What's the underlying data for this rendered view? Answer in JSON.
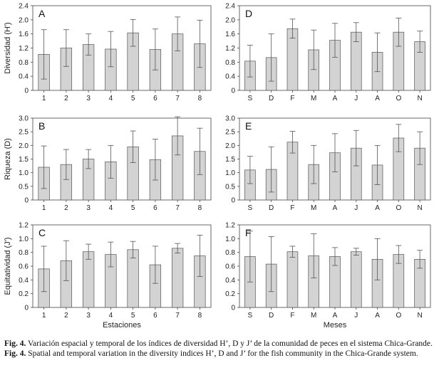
{
  "chart_data": [
    {
      "panel": "A",
      "type": "bar",
      "categories": [
        "1",
        "2",
        "3",
        "4",
        "5",
        "6",
        "7",
        "8"
      ],
      "values": [
        1.02,
        1.2,
        1.3,
        1.17,
        1.63,
        1.16,
        1.6,
        1.32
      ],
      "errors": [
        0.7,
        0.52,
        0.3,
        0.5,
        0.38,
        0.58,
        0.48,
        0.67
      ],
      "ylabel": "Diversidad (H')",
      "xlabel": "",
      "ylim": [
        0,
        2.4
      ],
      "yticks": [
        "0",
        "0.4",
        "0.8",
        "1.2",
        "1.6",
        "2.0",
        "2.4"
      ]
    },
    {
      "panel": "D",
      "type": "bar",
      "categories": [
        "S",
        "D",
        "F",
        "M",
        "A",
        "J",
        "A",
        "O",
        "N"
      ],
      "values": [
        0.83,
        0.93,
        1.75,
        1.15,
        1.42,
        1.65,
        1.08,
        1.65,
        1.38
      ],
      "errors": [
        0.45,
        0.67,
        0.27,
        0.56,
        0.48,
        0.27,
        0.55,
        0.4,
        0.3
      ],
      "ylabel": "",
      "xlabel": "",
      "ylim": [
        0,
        2.4
      ],
      "yticks": [
        "0",
        "0.4",
        "0.8",
        "1.2",
        "1.6",
        "2.0",
        "2.4"
      ]
    },
    {
      "panel": "B",
      "type": "bar",
      "categories": [
        "1",
        "2",
        "3",
        "4",
        "5",
        "6",
        "7",
        "8"
      ],
      "values": [
        1.2,
        1.3,
        1.5,
        1.4,
        1.95,
        1.48,
        2.35,
        1.78
      ],
      "errors": [
        0.78,
        0.55,
        0.35,
        0.6,
        0.58,
        0.75,
        0.7,
        0.85
      ],
      "ylabel": "Riqueza (D)",
      "xlabel": "",
      "ylim": [
        0,
        3.0
      ],
      "yticks": [
        "0",
        "0.5",
        "1.0",
        "1.5",
        "2.0",
        "2.5",
        "3.0"
      ]
    },
    {
      "panel": "E",
      "type": "bar",
      "categories": [
        "S",
        "D",
        "F",
        "M",
        "A",
        "J",
        "A",
        "O",
        "N"
      ],
      "values": [
        1.1,
        1.12,
        2.12,
        1.3,
        1.73,
        1.9,
        1.28,
        2.27,
        1.9
      ],
      "errors": [
        0.5,
        0.83,
        0.4,
        0.7,
        0.7,
        0.65,
        0.72,
        0.5,
        0.6
      ],
      "ylabel": "",
      "xlabel": "",
      "ylim": [
        0,
        3.0
      ],
      "yticks": [
        "0",
        "0.5",
        "1.0",
        "1.5",
        "2.0",
        "2.5",
        "3.0"
      ]
    },
    {
      "panel": "C",
      "type": "bar",
      "categories": [
        "1",
        "2",
        "3",
        "4",
        "5",
        "6",
        "7",
        "8"
      ],
      "values": [
        0.56,
        0.68,
        0.81,
        0.77,
        0.84,
        0.62,
        0.86,
        0.75
      ],
      "errors": [
        0.33,
        0.29,
        0.11,
        0.18,
        0.12,
        0.27,
        0.07,
        0.3
      ],
      "ylabel": "Equitatividad (J')",
      "xlabel": "Estaciones",
      "ylim": [
        0,
        1.2
      ],
      "yticks": [
        "0",
        "0.2",
        "0.4",
        "0.6",
        "0.8",
        "1.0",
        "1.2"
      ]
    },
    {
      "panel": "F",
      "type": "bar",
      "categories": [
        "S",
        "D",
        "F",
        "M",
        "A",
        "J",
        "A",
        "O",
        "N"
      ],
      "values": [
        0.74,
        0.63,
        0.81,
        0.75,
        0.74,
        0.81,
        0.7,
        0.77,
        0.7
      ],
      "errors": [
        0.37,
        0.4,
        0.08,
        0.32,
        0.13,
        0.05,
        0.3,
        0.13,
        0.13
      ],
      "ylabel": "",
      "xlabel": "Meses",
      "ylim": [
        0,
        1.2
      ],
      "yticks": [
        "0",
        "0.2",
        "0.4",
        "0.6",
        "0.8",
        "1.0",
        "1.2"
      ]
    }
  ],
  "caption": {
    "es_label": "Fig. 4.",
    "es_text": "Variación espacial y temporal de los índices de diversidad H’, D y J’ de la comunidad de peces en el sistema Chica-Grande.",
    "en_label": "Fig. 4.",
    "en_text": "Spatial and temporal variation in the diversity indices H’, D and J’ for the fish community in the Chica-Grande system."
  },
  "colors": {
    "bar_fill": "#d3d3d3",
    "bar_stroke": "#555555",
    "error_bar": "#555555",
    "frame": "#444444"
  }
}
